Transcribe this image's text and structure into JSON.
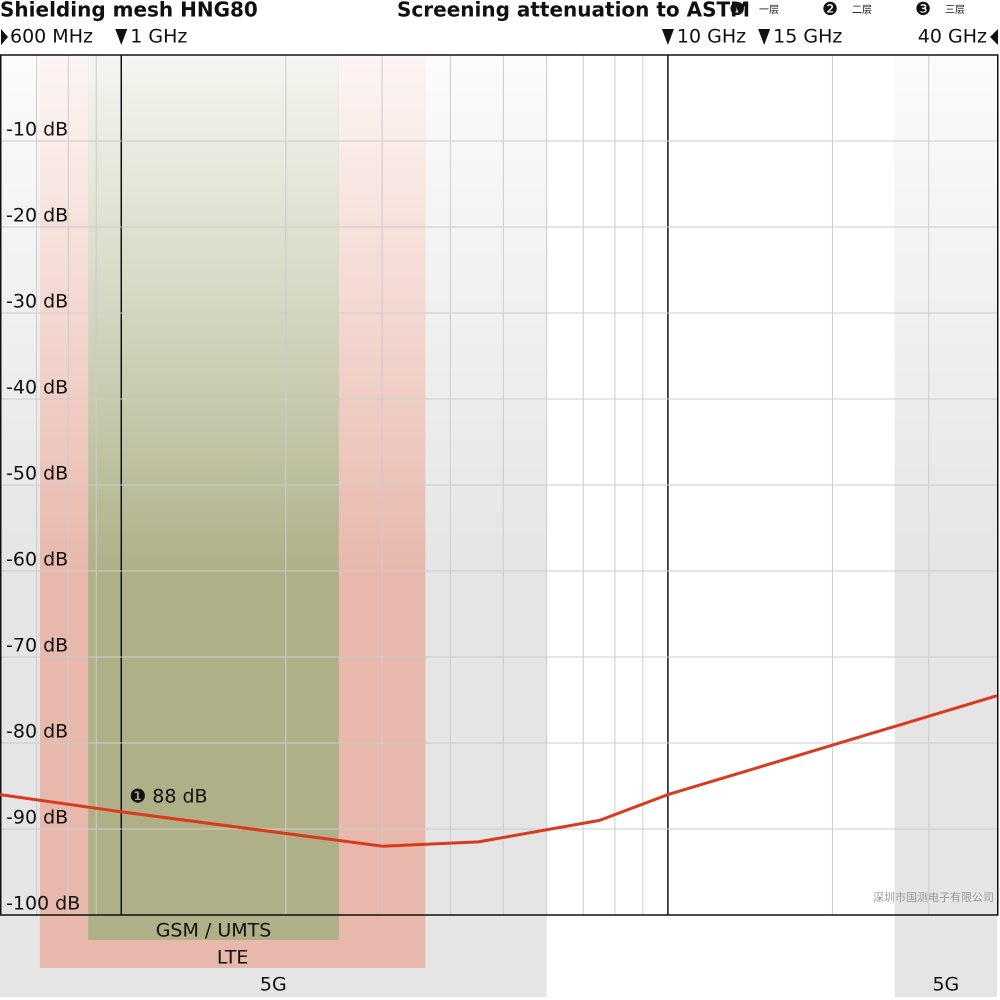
{
  "chart_data": {
    "type": "line",
    "title": "Shielding mesh HNG80",
    "subtitle": "Screening attenuation to ASTM",
    "legend": [
      {
        "marker": "❶",
        "label": "一层"
      },
      {
        "marker": "❷",
        "label": "二层"
      },
      {
        "marker": "❸",
        "label": "三层"
      }
    ],
    "x_log_scale": true,
    "xlim": [
      0.6,
      40
    ],
    "xticks": [
      {
        "value": 0.6,
        "label": "600 MHz"
      },
      {
        "value": 1,
        "label": "1 GHz"
      },
      {
        "value": 10,
        "label": "10 GHz"
      },
      {
        "value": 15,
        "label": "15 GHz"
      },
      {
        "value": 40,
        "label": "40 GHz"
      }
    ],
    "x_minor_ticks": [
      0.7,
      0.8,
      0.9,
      1,
      2,
      3,
      4,
      5,
      6,
      7,
      8,
      9,
      10,
      20,
      30
    ],
    "emphasized_xlines": [
      1,
      10
    ],
    "ylim": [
      -100,
      0
    ],
    "yticks": [
      {
        "value": -10,
        "label": "-10 dB"
      },
      {
        "value": -20,
        "label": "-20 dB"
      },
      {
        "value": -30,
        "label": "-30 dB"
      },
      {
        "value": -40,
        "label": "-40 dB"
      },
      {
        "value": -50,
        "label": "-50 dB"
      },
      {
        "value": -60,
        "label": "-60 dB"
      },
      {
        "value": -70,
        "label": "-70 dB"
      },
      {
        "value": -80,
        "label": "-80 dB"
      },
      {
        "value": -90,
        "label": "-90 dB"
      },
      {
        "value": -100,
        "label": "-100 dB"
      }
    ],
    "grid": true,
    "bands": [
      {
        "label": "5G",
        "from": 0.6,
        "to": 6,
        "color": "#d4d4d4"
      },
      {
        "label": "LTE",
        "from": 0.71,
        "to": 3.6,
        "color": "#e8a898"
      },
      {
        "label": "GSM / UMTS",
        "from": 0.87,
        "to": 2.5,
        "color": "#9cad7c"
      },
      {
        "label": "5G",
        "from": 26,
        "to": 40,
        "color": "#d4d4d4"
      }
    ],
    "series": [
      {
        "name": "❶",
        "color": "#d93a1e",
        "x": [
          0.6,
          1,
          3,
          4.5,
          7.5,
          10,
          40
        ],
        "values": [
          -86,
          -88,
          -92,
          -91.5,
          -89,
          -86,
          -74.5
        ]
      }
    ],
    "annotation": {
      "marker": "❶",
      "text": "88 dB",
      "x": 1,
      "y": -88
    },
    "watermark": "深圳市国测电子有限公司"
  }
}
